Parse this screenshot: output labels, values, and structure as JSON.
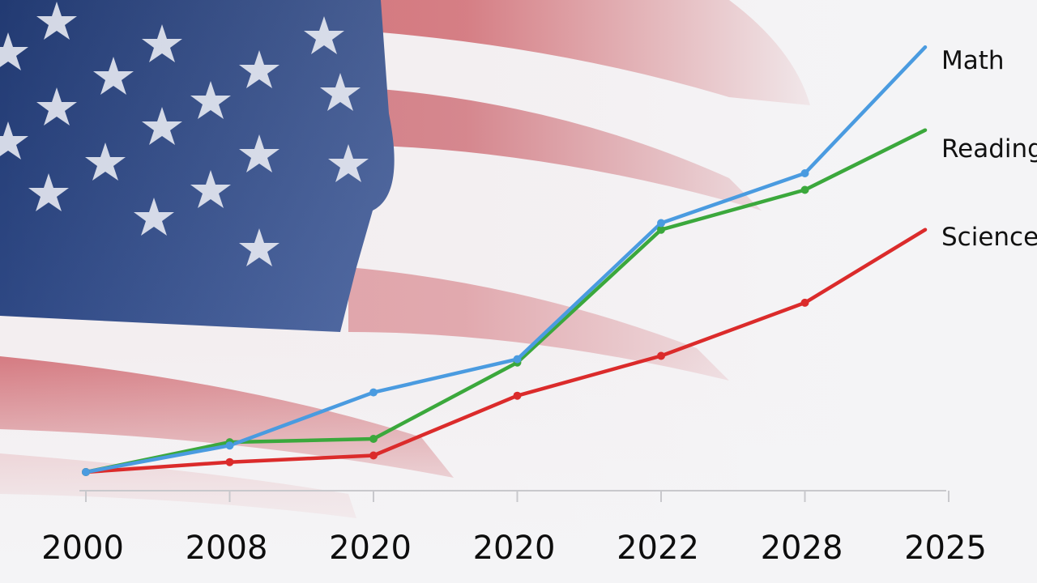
{
  "chart_data": {
    "type": "line",
    "categories": [
      "2000",
      "2008",
      "2020",
      "2020",
      "2022",
      "2028",
      "2025"
    ],
    "series": [
      {
        "name": "Math",
        "color": "#4a9be0",
        "values": [
          0,
          8,
          24,
          34,
          75,
          90,
          128
        ]
      },
      {
        "name": "Reading",
        "color": "#3ba83c",
        "values": [
          0,
          9,
          10,
          33,
          73,
          85,
          103
        ]
      },
      {
        "name": "Science",
        "color": "#db2b2b",
        "values": [
          0,
          3,
          5,
          23,
          35,
          51,
          73
        ]
      }
    ],
    "ylim": [
      0,
      130
    ],
    "grid": false,
    "legend": "right, at line ends"
  },
  "background": {
    "description_icon": "american-flag-backdrop"
  }
}
